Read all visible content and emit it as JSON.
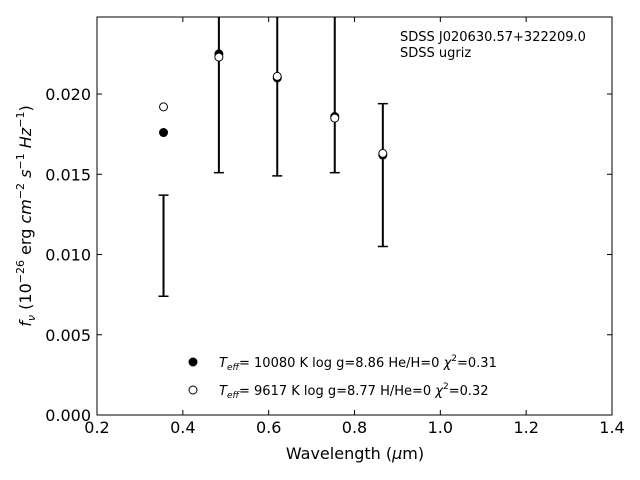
{
  "chart_data": {
    "type": "scatter",
    "xlabel": "Wavelength (μm)",
    "ylabel": "f_ν (10^-26 erg cm^-2 s^-1 Hz^-1)",
    "xlim": [
      0.2,
      1.4
    ],
    "ylim": [
      0.0,
      0.0248
    ],
    "xticks": [
      0.2,
      0.4,
      0.6,
      0.8,
      1.0,
      1.2,
      1.4
    ],
    "xtick_labels": [
      "0.2",
      "0.4",
      "0.6",
      "0.8",
      "1.0",
      "1.2",
      "1.4"
    ],
    "yticks": [
      0.0,
      0.005,
      0.01,
      0.015,
      0.02
    ],
    "ytick_labels": [
      "0.000",
      "0.005",
      "0.010",
      "0.015",
      "0.020"
    ],
    "grid": false,
    "annotation": {
      "line1": "SDSS J020630.57+322209.0",
      "line2": "SDSS ugriz"
    },
    "observed": {
      "x": [
        0.355,
        0.484,
        0.62,
        0.754,
        0.866
      ],
      "y_low": [
        0.0074,
        0.0151,
        0.0149,
        0.0151,
        0.0105
      ],
      "y_high": [
        0.0137,
        0.0248,
        0.0248,
        0.0248,
        0.0194
      ]
    },
    "series": [
      {
        "name": "T_eff= 10080 K  log g=8.86  He/H=0  χ²=0.31",
        "marker": "filled-circle",
        "x": [
          0.355,
          0.484,
          0.62,
          0.754,
          0.866
        ],
        "y": [
          0.0176,
          0.0225,
          0.021,
          0.0186,
          0.0162
        ]
      },
      {
        "name": "T_eff=  9617 K  log g=8.77  H/He=0  χ²=0.32",
        "marker": "open-circle",
        "x": [
          0.355,
          0.484,
          0.62,
          0.754,
          0.866
        ],
        "y": [
          0.0192,
          0.0223,
          0.0211,
          0.0185,
          0.0163
        ]
      }
    ],
    "legend": {
      "position": "bottom-center",
      "entries": [
        {
          "marker": "filled-circle",
          "prefix": "T",
          "sub": "eff",
          "pre_chi": "= 10080 K  log g=8.86  He/H=0  ",
          "chi": "χ",
          "sup": "2",
          "post_chi": "=0.31"
        },
        {
          "marker": "open-circle",
          "prefix": "T",
          "sub": "eff",
          "pre_chi": "=  9617 K  log g=8.77  H/He=0  ",
          "chi": "χ",
          "sup": "2",
          "post_chi": "=0.32"
        }
      ]
    }
  }
}
